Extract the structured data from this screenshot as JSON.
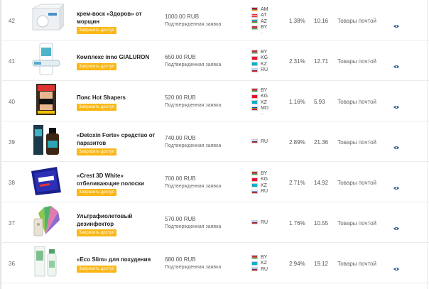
{
  "request_label": "Запросить доступ",
  "rows": [
    {
      "id": "42",
      "name": "крем-воск «Здоров» от морщин",
      "price": "1000.00 RUB",
      "status": "Подтвержденная заявка",
      "countries": [
        "AM",
        "AT",
        "AZ",
        "BY"
      ],
      "more": "...",
      "percent": "1.38%",
      "value": "10.16",
      "delivery": "Товары почтой"
    },
    {
      "id": "41",
      "name": "Комплекс inno GIALURON",
      "price": "650.00 RUB",
      "status": "Подтвержденная заявка",
      "countries": [
        "BY",
        "KG",
        "KZ",
        "RU"
      ],
      "more": "",
      "percent": "2.31%",
      "value": "12.71",
      "delivery": "Товары почтой"
    },
    {
      "id": "40",
      "name": "Пояс Hot Shapers",
      "price": "520.00 RUB",
      "status": "Подтвержденная заявка",
      "countries": [
        "BY",
        "KG",
        "KZ",
        "MD"
      ],
      "more": "...",
      "percent": "1.16%",
      "value": "5.93",
      "delivery": "Товары почтой"
    },
    {
      "id": "39",
      "name": "«Detoxin Forte» средство от паразитов",
      "price": "740.00 RUB",
      "status": "Подтвержденная заявка",
      "countries": [
        "RU"
      ],
      "more": "",
      "percent": "2.89%",
      "value": "21.36",
      "delivery": "Товары почтой"
    },
    {
      "id": "38",
      "name": "«Crest 3D White» отбеливающие полоски",
      "price": "700.00 RUB",
      "status": "Подтвержденная заявка",
      "countries": [
        "BY",
        "KG",
        "KZ",
        "RU"
      ],
      "more": "",
      "percent": "2.71%",
      "value": "14.92",
      "delivery": "Товары почтой"
    },
    {
      "id": "37",
      "name": "Ультрафиолетовый дезинфектор",
      "price": "570.00 RUB",
      "status": "Подтвержденная заявка",
      "countries": [
        "RU"
      ],
      "more": "",
      "percent": "1.76%",
      "value": "10.55",
      "delivery": "Товары почтой"
    },
    {
      "id": "36",
      "name": "«Eco Slim» для похудения",
      "price": "680.00 RUB",
      "status": "Подтвержденная заявка",
      "countries": [
        "BY",
        "KZ",
        "RU"
      ],
      "more": "",
      "percent": "2.94%",
      "value": "19.12",
      "delivery": "Товары почтой"
    }
  ],
  "flag_colors": {
    "AM": [
      "#d90012",
      "#0033a0",
      "#f2a800"
    ],
    "AT": [
      "#ed2939",
      "#ffffff",
      "#ed2939"
    ],
    "AZ": [
      "#00b5e2",
      "#ef3340",
      "#509e2f"
    ],
    "BY": [
      "#c8313e",
      "#c8313e",
      "#4aa657"
    ],
    "KG": [
      "#e8112d",
      "#e8112d",
      "#e8112d"
    ],
    "KZ": [
      "#00afca",
      "#00afca",
      "#00afca"
    ],
    "RU": [
      "#ffffff",
      "#0039a6",
      "#d52b1e"
    ],
    "MD": [
      "#0046ae",
      "#ffd200",
      "#cc092f"
    ]
  },
  "thumb_icons": [
    "cream-jar-icon",
    "gel-tube-icon",
    "belt-box-icon",
    "detox-bottle-icon",
    "whitening-box-icon",
    "uv-lamp-icon",
    "slim-bottle-icon"
  ]
}
